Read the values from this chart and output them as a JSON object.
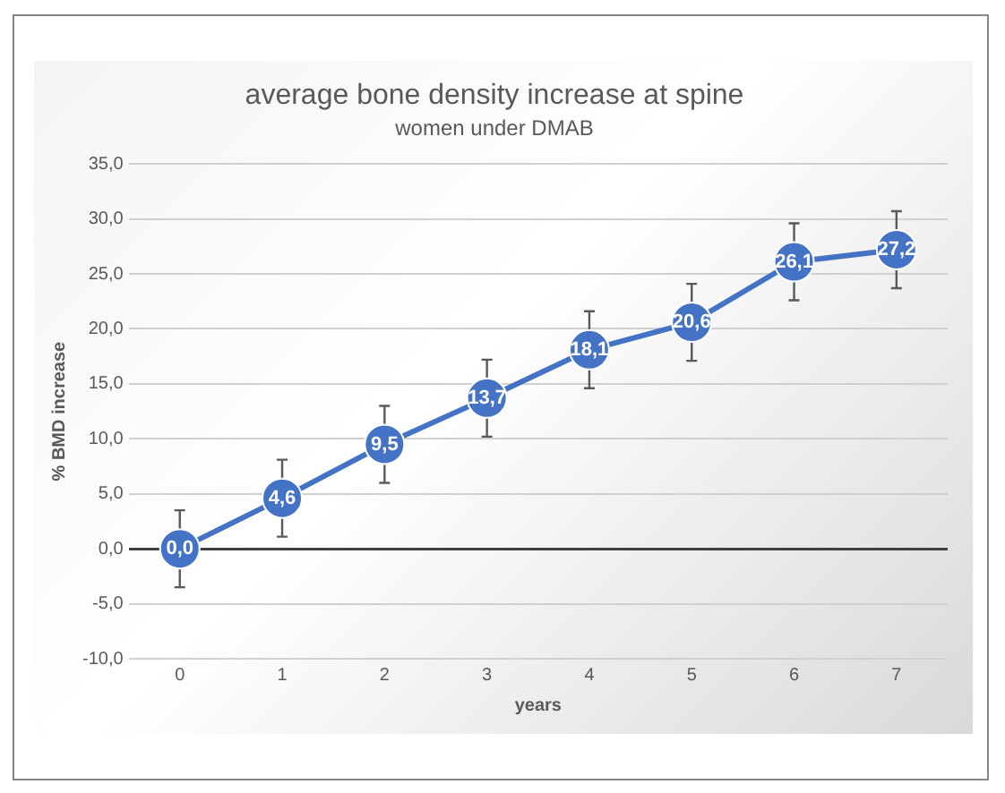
{
  "chart_data": {
    "type": "line",
    "title": "average bone density increase at spine",
    "subtitle": "women under DMAB",
    "xlabel": "years",
    "ylabel": "% BMD increase",
    "categories": [
      "0",
      "1",
      "2",
      "3",
      "4",
      "5",
      "6",
      "7"
    ],
    "series": [
      {
        "color": "#4472c4",
        "values": [
          0.0,
          4.6,
          9.5,
          13.7,
          18.1,
          20.6,
          26.1,
          27.2
        ],
        "errors": [
          3.5,
          3.5,
          3.5,
          3.5,
          3.5,
          3.5,
          3.5,
          3.5
        ],
        "value_labels": [
          "0,0",
          "4,6",
          "9,5",
          "13,7",
          "18,1",
          "20,6",
          "26,1",
          "27,2"
        ]
      }
    ],
    "ylim": [
      -10,
      35
    ],
    "yticks": [
      {
        "value": -10,
        "label": "-10,0"
      },
      {
        "value": -5,
        "label": "-5,0"
      },
      {
        "value": 0,
        "label": "0,0"
      },
      {
        "value": 5,
        "label": "5,0"
      },
      {
        "value": 10,
        "label": "10,0"
      },
      {
        "value": 15,
        "label": "15,0"
      },
      {
        "value": 20,
        "label": "20,0"
      },
      {
        "value": 25,
        "label": "25,0"
      },
      {
        "value": 30,
        "label": "30,0"
      },
      {
        "value": 35,
        "label": "35,0"
      }
    ],
    "grid": "y",
    "marker": "circle",
    "line_style": "solid"
  }
}
